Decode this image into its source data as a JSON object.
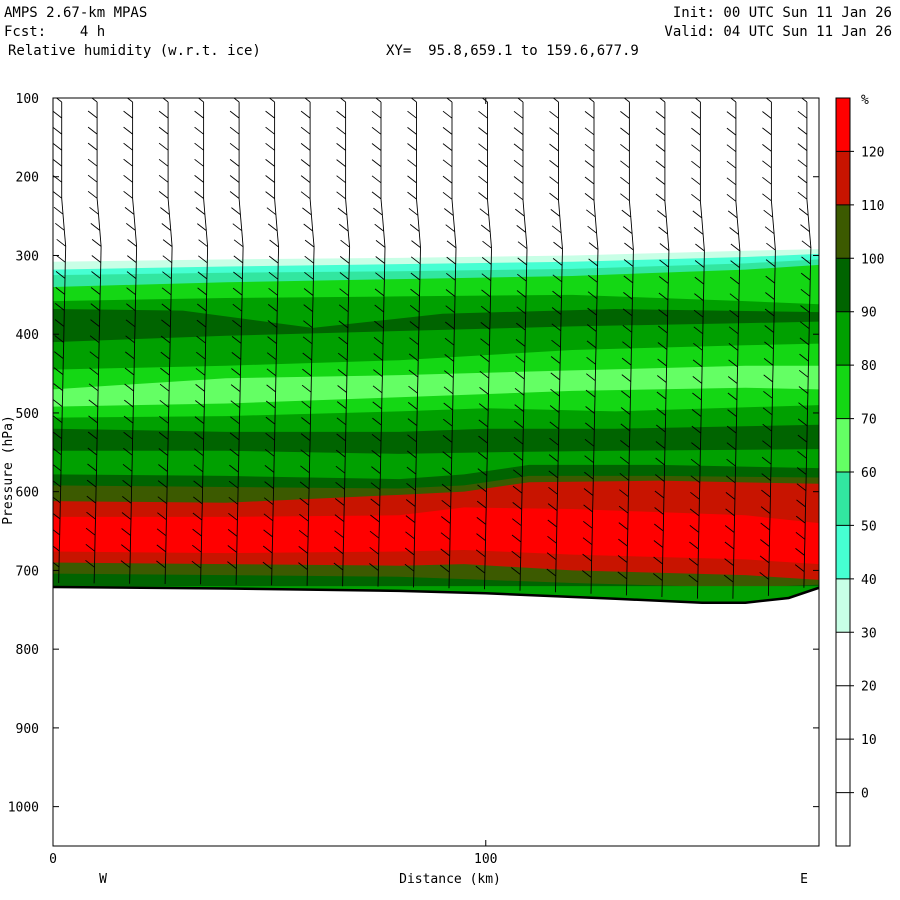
{
  "header": {
    "model": "AMPS 2.67-km MPAS",
    "fcst": "Fcst:    4 h",
    "field": "Relative humidity (w.r.t. ice)",
    "xy": "XY=  95.8,659.1 to 159.6,677.9",
    "init": "Init: 00 UTC Sun 11 Jan 26",
    "valid": "Valid: 04 UTC Sun 11 Jan 26"
  },
  "chart_data": {
    "type": "heatmap",
    "xlabel": "Distance (km)",
    "ylabel": "Pressure (hPa)",
    "x_ticks": [
      "0",
      "100"
    ],
    "x_end_labels": {
      "left": "W",
      "right": "E"
    },
    "y_ticks": [
      "100",
      "200",
      "300",
      "400",
      "500",
      "600",
      "700",
      "800",
      "900",
      "1000"
    ],
    "xlim": [
      0,
      177
    ],
    "ylim": [
      100,
      1050
    ],
    "colorbar": {
      "unit": "%",
      "labels": [
        "120",
        "110",
        "100",
        "90",
        "80",
        "70",
        "60",
        "50",
        "40",
        "30",
        "20",
        "10",
        "0"
      ],
      "colors": [
        "#ff0000",
        "#c81400",
        "#3c5a00",
        "#006400",
        "#00a000",
        "#14d714",
        "#64ff64",
        "#32e6a0",
        "#46ffd2",
        "#c8ffe6",
        "#ffffff",
        "#ffffff",
        "#ffffff",
        "#ffffff"
      ]
    },
    "bands": [
      {
        "rh": 30,
        "p": [
          [
            0,
            308
          ],
          [
            40,
            305
          ],
          [
            80,
            303
          ],
          [
            120,
            300
          ],
          [
            160,
            294
          ],
          [
            177,
            292
          ]
        ]
      },
      {
        "rh": 40,
        "p": [
          [
            0,
            318
          ],
          [
            40,
            314
          ],
          [
            80,
            311
          ],
          [
            120,
            308
          ],
          [
            160,
            302
          ],
          [
            177,
            298
          ]
        ]
      },
      {
        "rh": 50,
        "p": [
          [
            0,
            325
          ],
          [
            40,
            322
          ],
          [
            80,
            320
          ],
          [
            120,
            317
          ],
          [
            160,
            310
          ],
          [
            177,
            305
          ]
        ]
      },
      {
        "rh": 70,
        "p": [
          [
            0,
            340
          ],
          [
            40,
            334
          ],
          [
            80,
            330
          ],
          [
            120,
            326
          ],
          [
            160,
            318
          ],
          [
            177,
            312
          ]
        ]
      },
      {
        "rh": 80,
        "p": [
          [
            0,
            358
          ],
          [
            40,
            354
          ],
          [
            80,
            352
          ],
          [
            120,
            350
          ],
          [
            160,
            358
          ],
          [
            177,
            362
          ]
        ]
      },
      {
        "rh": 90,
        "p": [
          [
            0,
            368
          ],
          [
            30,
            370
          ],
          [
            60,
            392
          ],
          [
            90,
            374
          ],
          [
            130,
            368
          ],
          [
            177,
            372
          ]
        ]
      },
      {
        "rh": 80,
        "p": [
          [
            0,
            410
          ],
          [
            40,
            402
          ],
          [
            80,
            396
          ],
          [
            120,
            390
          ],
          [
            160,
            386
          ],
          [
            177,
            384
          ]
        ]
      },
      {
        "rh": 70,
        "p": [
          [
            0,
            445
          ],
          [
            40,
            440
          ],
          [
            80,
            433
          ],
          [
            120,
            420
          ],
          [
            160,
            414
          ],
          [
            177,
            412
          ]
        ]
      },
      {
        "rh": 60,
        "p": [
          [
            0,
            470
          ],
          [
            40,
            456
          ],
          [
            80,
            452
          ],
          [
            120,
            446
          ],
          [
            160,
            440
          ],
          [
            177,
            440
          ]
        ]
      },
      {
        "rh": 70,
        "p": [
          [
            0,
            492
          ],
          [
            40,
            488
          ],
          [
            80,
            480
          ],
          [
            120,
            472
          ],
          [
            160,
            468
          ],
          [
            177,
            470
          ]
        ]
      },
      {
        "rh": 80,
        "p": [
          [
            0,
            506
          ],
          [
            40,
            504
          ],
          [
            80,
            498
          ],
          [
            100,
            494
          ],
          [
            130,
            498
          ],
          [
            177,
            490
          ]
        ]
      },
      {
        "rh": 90,
        "p": [
          [
            0,
            520
          ],
          [
            40,
            524
          ],
          [
            80,
            524
          ],
          [
            100,
            520
          ],
          [
            130,
            520
          ],
          [
            177,
            515
          ]
        ]
      },
      {
        "rh": 80,
        "p": [
          [
            0,
            548
          ],
          [
            40,
            548
          ],
          [
            80,
            552
          ],
          [
            100,
            550
          ],
          [
            130,
            548
          ],
          [
            177,
            546
          ]
        ]
      },
      {
        "rh": 90,
        "p": [
          [
            0,
            578
          ],
          [
            40,
            580
          ],
          [
            80,
            584
          ],
          [
            95,
            578
          ],
          [
            110,
            566
          ],
          [
            140,
            566
          ],
          [
            177,
            570
          ]
        ]
      },
      {
        "rh": 100,
        "p": [
          [
            0,
            592
          ],
          [
            40,
            594
          ],
          [
            80,
            596
          ],
          [
            95,
            592
          ],
          [
            110,
            580
          ],
          [
            140,
            580
          ],
          [
            177,
            582
          ]
        ]
      },
      {
        "rh": 110,
        "p": [
          [
            0,
            612
          ],
          [
            40,
            614
          ],
          [
            80,
            604
          ],
          [
            95,
            600
          ],
          [
            110,
            588
          ],
          [
            140,
            586
          ],
          [
            177,
            590
          ]
        ]
      },
      {
        "rh": 120,
        "p": [
          [
            0,
            632
          ],
          [
            40,
            632
          ],
          [
            80,
            630
          ],
          [
            95,
            620
          ],
          [
            120,
            622
          ],
          [
            160,
            630
          ],
          [
            177,
            640
          ]
        ]
      },
      {
        "rh": 110,
        "p": [
          [
            0,
            676
          ],
          [
            40,
            678
          ],
          [
            80,
            676
          ],
          [
            95,
            674
          ],
          [
            120,
            680
          ],
          [
            160,
            686
          ],
          [
            177,
            692
          ]
        ]
      },
      {
        "rh": 100,
        "p": [
          [
            0,
            690
          ],
          [
            40,
            692
          ],
          [
            80,
            694
          ],
          [
            95,
            692
          ],
          [
            120,
            700
          ],
          [
            160,
            706
          ],
          [
            177,
            712
          ]
        ]
      },
      {
        "rh": 90,
        "p": [
          [
            0,
            704
          ],
          [
            40,
            706
          ],
          [
            80,
            708
          ],
          [
            120,
            716
          ],
          [
            160,
            722
          ],
          [
            177,
            718
          ]
        ]
      },
      {
        "rh": 80,
        "p": [
          [
            0,
            720
          ],
          [
            177,
            720
          ]
        ]
      }
    ],
    "terrain_surface_hpa": [
      [
        0,
        721
      ],
      [
        40,
        723
      ],
      [
        80,
        726
      ],
      [
        100,
        729
      ],
      [
        130,
        736
      ],
      [
        150,
        741
      ],
      [
        160,
        741
      ],
      [
        170,
        735
      ],
      [
        177,
        722
      ]
    ]
  }
}
